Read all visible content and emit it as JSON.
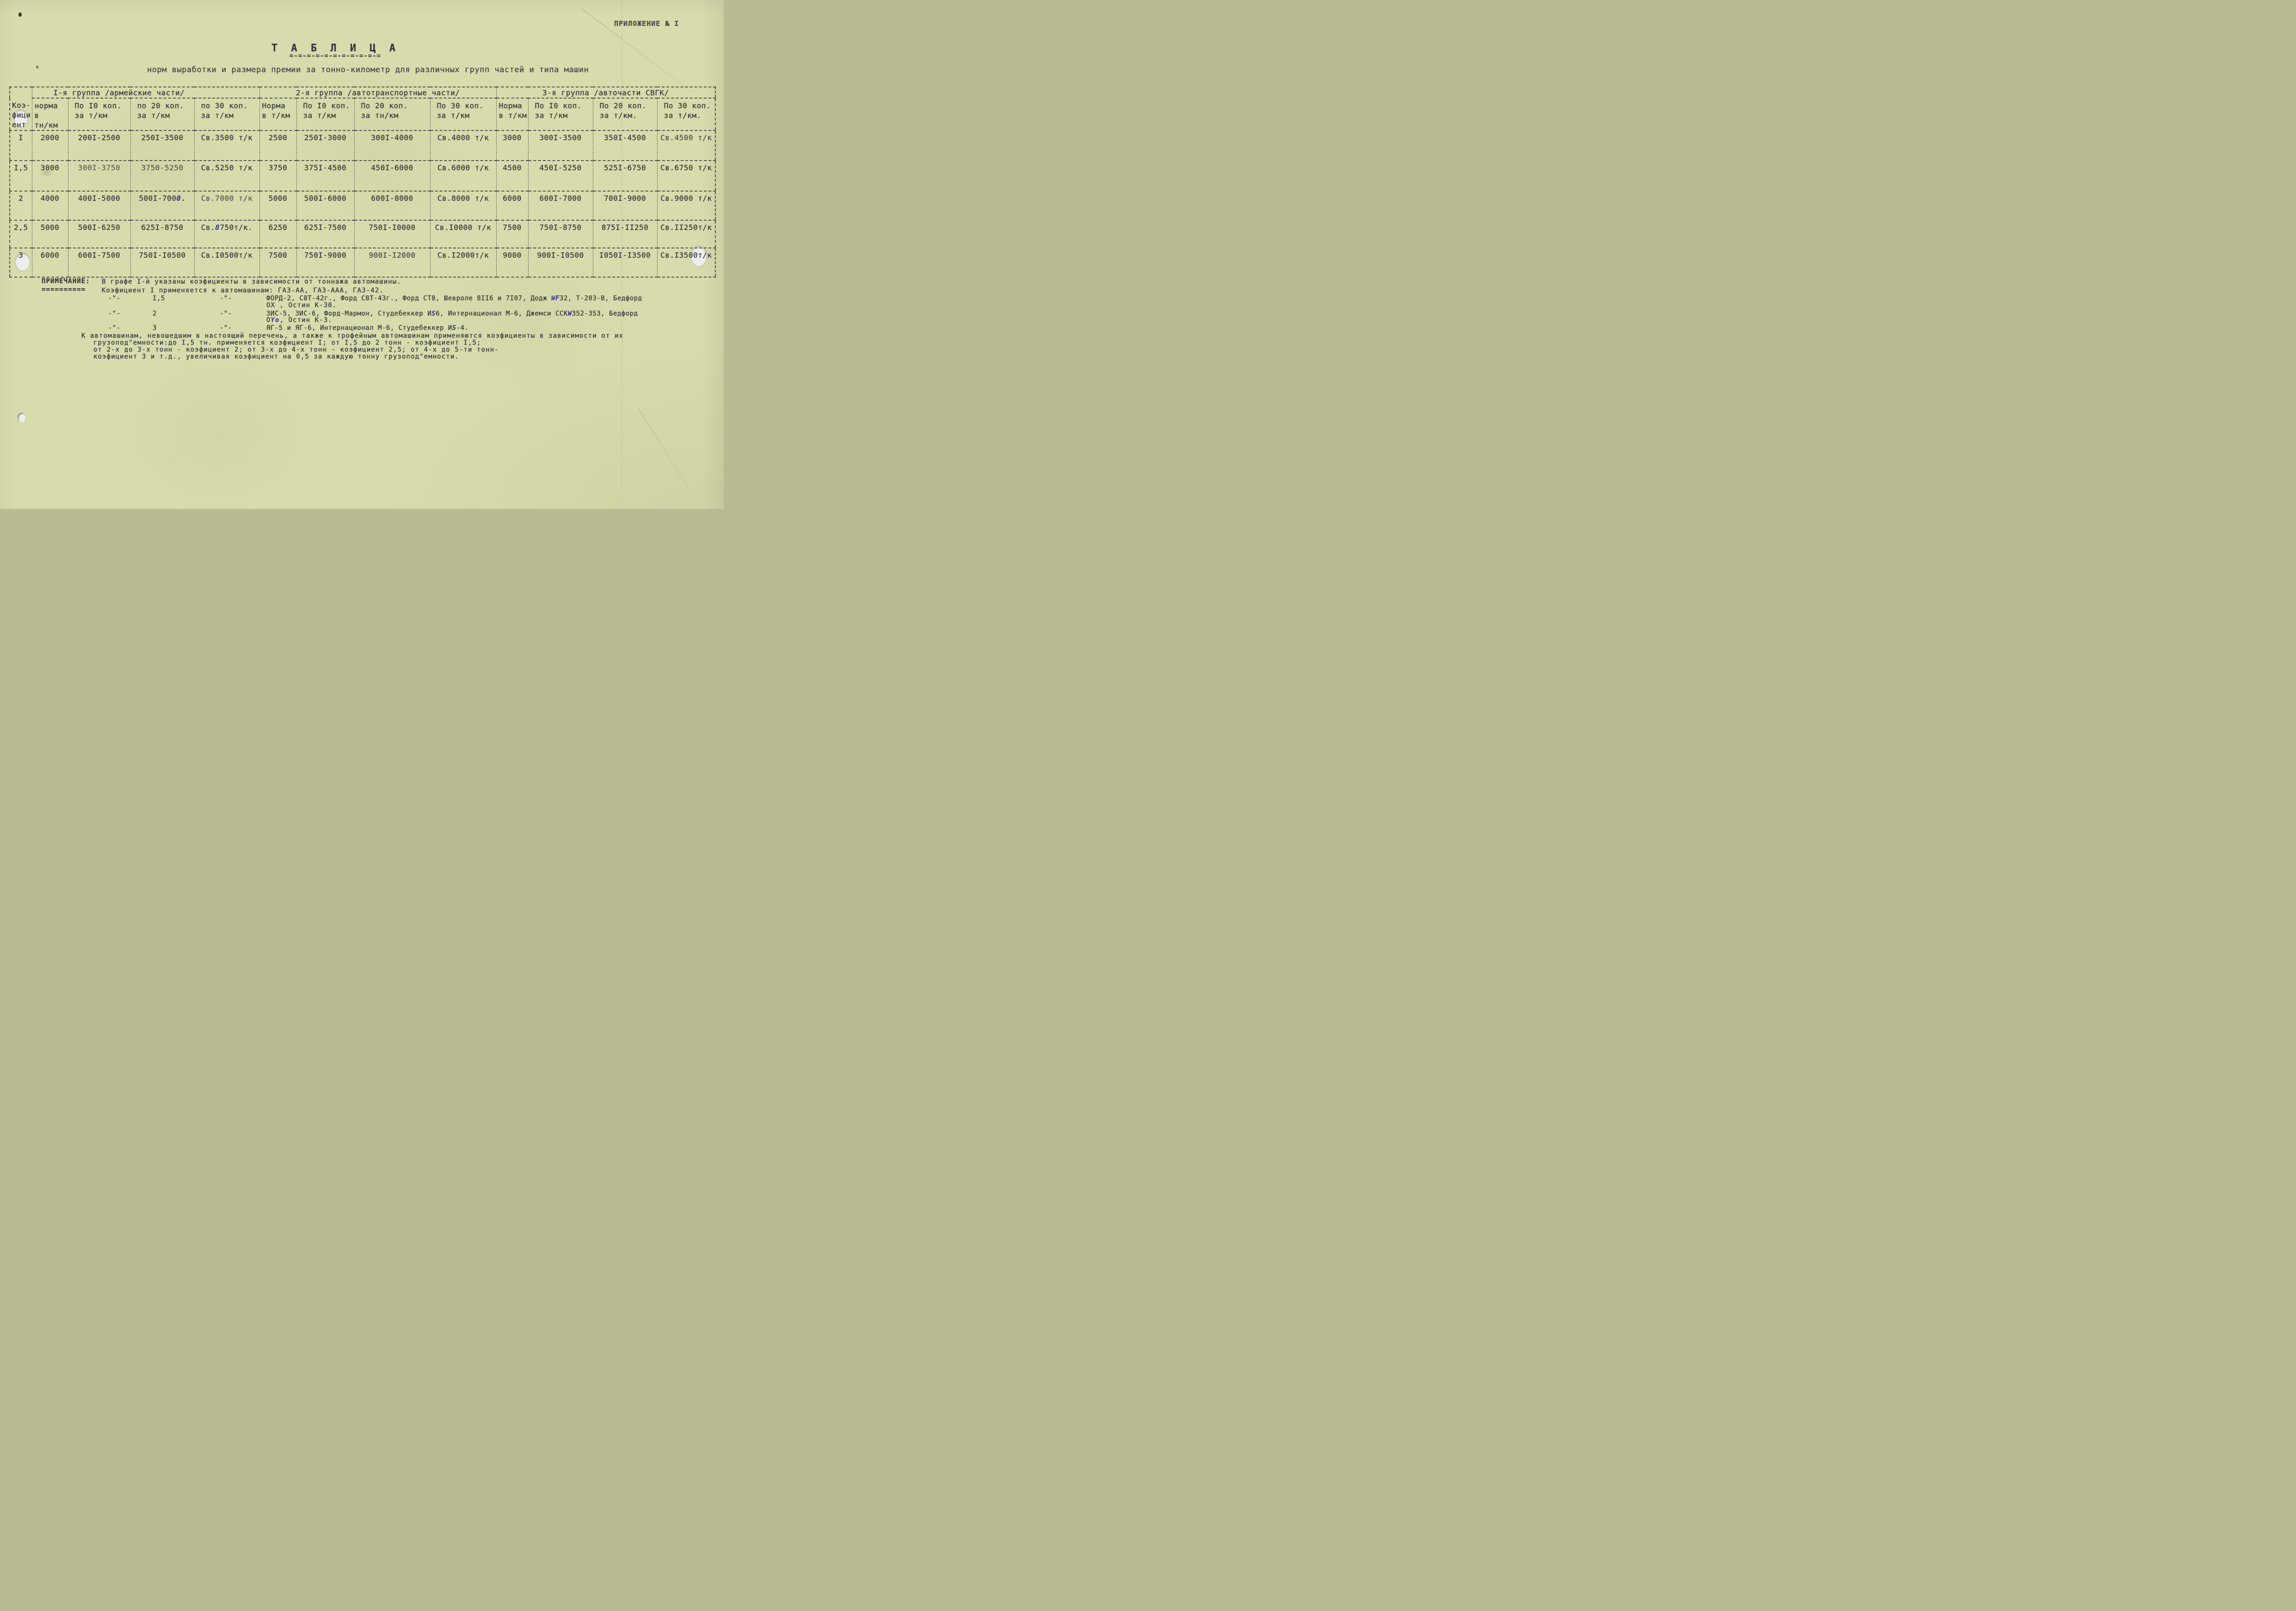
{
  "colors": {
    "paper": "#d8dbac",
    "ink": "#34353d",
    "blue_ink": "#2e2ea0"
  },
  "page": {
    "appendix": "ПРИЛОЖЕНИЕ № I",
    "title": "Т А Б Л И Ц А",
    "title_underline": "=-=-=-=-=-=-=-=-=-=-=",
    "subtitle": "норм выработки и размера премии за тонно-километр для различных групп частей и типа машин"
  },
  "table": {
    "corner_header": "Коэ-\nфици-\nент",
    "groups": [
      {
        "label": "I-я группа /армейские части/",
        "cols": [
          "норма\nв\nтн/км",
          "По I0 коп.\nза т/км",
          "по 20 коп.\nза т/км",
          "по 30 коп.\nза т/км"
        ]
      },
      {
        "label": "2-я группа /автотранспортные части/",
        "cols": [
          "Норма\nв т/км",
          "По I0 коп.\nза т/км",
          "По 20 коп.\nза тн/км",
          "По 30 коп.\nза т/км"
        ]
      },
      {
        "label": "3-я группа /авточасти СВГК/",
        "cols": [
          "Норма\nв т/км",
          "По I0 коп.\nза т/км",
          "По 20 коп.\nза т/км.",
          "По 30 коп.\nза т/км."
        ]
      }
    ],
    "rows": [
      [
        "I",
        "2000",
        "200I-2500",
        "250I-3500",
        "Св.3500 т/к",
        "2500",
        "250I-3000",
        "300I-4000",
        "Св.4000 т/к",
        "3000",
        "300I-3500",
        "350I-4500",
        "Св.4500 т/к"
      ],
      [
        "I,5",
        "3000",
        "300I-3750",
        "3750-5250",
        "Св.5250 т/к",
        "3750",
        "375I-4500",
        "450I-6000",
        "Св.6000 т/к",
        "4500",
        "450I-5250",
        "525I-6750",
        "Св.6750 т/к"
      ],
      [
        "2",
        "4000",
        "400I-5000",
        "500I-700[[0]].",
        "Св.7000 т/к",
        "5000",
        "500I-6000",
        "600I-8000",
        "Св.8000 т/к",
        "6000",
        "600I-7000",
        "700I-9000",
        "Св.9000 т/к"
      ],
      [
        "2,5",
        "5000",
        "500I-6250",
        "625I-8750",
        "Св.[[8]]750т/к.",
        "6250",
        "625I-7500",
        "750I-I0000",
        "Св.I0000 т/к",
        "7500",
        "750I-8750",
        "875I-II250",
        "Св.II250т/к"
      ],
      [
        "3",
        "6000",
        "600I-7500",
        "750I-I0500",
        "Св.I0500т/к",
        "7500",
        "750I-9000",
        "900I-I2000",
        "Св.I2000т/к",
        "9000",
        "900I-I0500",
        "I050I-I3500",
        "Св.I3500т/к"
      ]
    ]
  },
  "notes": {
    "label": "ПРИМЕЧАНИЕ:",
    "label_underline": "==========",
    "line1": "В графе I-й указаны коэфициенты в зависимости от тоннажа автомашины.",
    "line2": "Коэфициент I применяется к автомашинам: ГАЗ-АА, ГАЗ-ААА, ГАЗ-42.",
    "ditto": "-\"-",
    "coeff_rows": [
      {
        "coeff": "I,5",
        "text": "ФОРД-2, С8Т-42г., Форд С8Т-43г., Форд  СТ8, Шевроле 8II6 и 7I07, Додж [[WF]]32, Т-203-В, Бедфорд",
        "wrap": "ОХ , Остин К-30."
      },
      {
        "coeff": "2",
        "text": "ЗИС-5, ЗИС-6, Форд-Мармон, Студебеккер И[[S]]6, Интернационал М-6, Джемси ССК[[W]]352-353, Бедфорд",
        "wrap": "О[[Yо]], Остин К-3."
      },
      {
        "coeff": "3",
        "text": "ЯГ-5 и ЯГ-6, Интернационал М-6, Студебеккер И[[S]]-4.",
        "wrap": ""
      }
    ],
    "para_lines": [
      "К автомашинам, невошедшим в настоящий перечень, а также к трофейным автомашинам применяются коэфициенты в зависимости от их",
      "грузопод\"емности:до I,5 тн. применяется коэфициент I; от I,5 до 2 тонн - коэфициент I,5;",
      "от 2-х до 3-х тонн - коэфициент 2; от 3-х до 4-х тонн - коэфициент 2,5; от 4-х до 5-ти тонн-",
      "коэфициент 3 и т.д., увеличивая коэфициент на 0,5 за каждую тонну грузопод\"емности."
    ]
  }
}
